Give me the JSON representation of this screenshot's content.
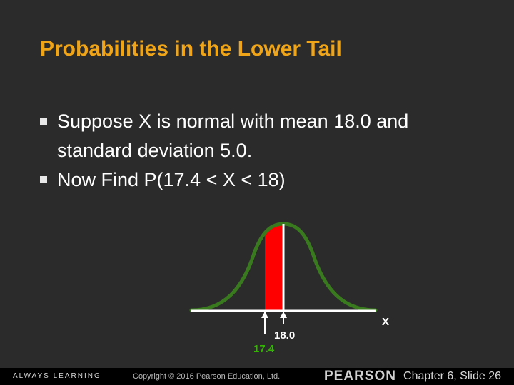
{
  "slide": {
    "title": "Probabilities in the Lower Tail",
    "bullets": [
      "Suppose  X  is normal with mean 18.0 and standard deviation 5.0.",
      "Now Find P(17.4 < X < 18)"
    ]
  },
  "diagram": {
    "axis_label": "X",
    "mean_label": "18.0",
    "lower_label": "17.4",
    "colors": {
      "curve": "#3a7a1f",
      "shade": "#ff0000",
      "axis": "#ffffff",
      "lower_label": "#33b400"
    }
  },
  "footer": {
    "left_text": "ALWAYS LEARNING",
    "copyright": "Copyright © 2016 Pearson Education, Ltd.",
    "brand": "PEARSON",
    "slide_ref": "Chapter 6, Slide 26"
  }
}
